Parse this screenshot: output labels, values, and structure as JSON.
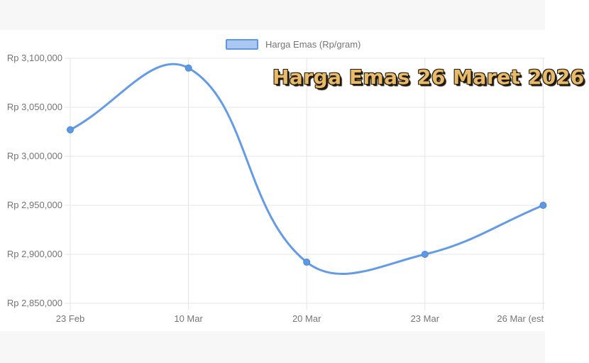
{
  "chart_data": {
    "type": "line",
    "title": "Harga Emas 26 Maret 2026",
    "legend": {
      "label": "Harga Emas (Rp/gram)",
      "position": "top"
    },
    "categories": [
      "23 Feb",
      "10 Mar",
      "20 Mar",
      "23 Mar",
      "26 Mar (est"
    ],
    "series": [
      {
        "name": "Harga Emas (Rp/gram)",
        "values": [
          3027000,
          3090000,
          2892000,
          2900000,
          2950000
        ]
      }
    ],
    "ylim": [
      2850000,
      3100000
    ],
    "y_tick_step": 50000,
    "y_tick_labels": [
      "Rp 3,100,000",
      "Rp 3,050,000",
      "Rp 3,000,000",
      "Rp 2,950,000",
      "Rp 2,900,000",
      "Rp 2,850,000"
    ],
    "grid": true,
    "line_tension": 0.4,
    "colors": {
      "line": "#639be7",
      "point_fill": "#5e97e4",
      "point_border": "#4a87d8",
      "legend_fill": "#abc8f2",
      "legend_border": "#5e97e4",
      "grid_line": "#e4e4e4",
      "tick_text": "#757575",
      "title_text": "#e7bb69",
      "title_outline": "#1f1708"
    }
  }
}
